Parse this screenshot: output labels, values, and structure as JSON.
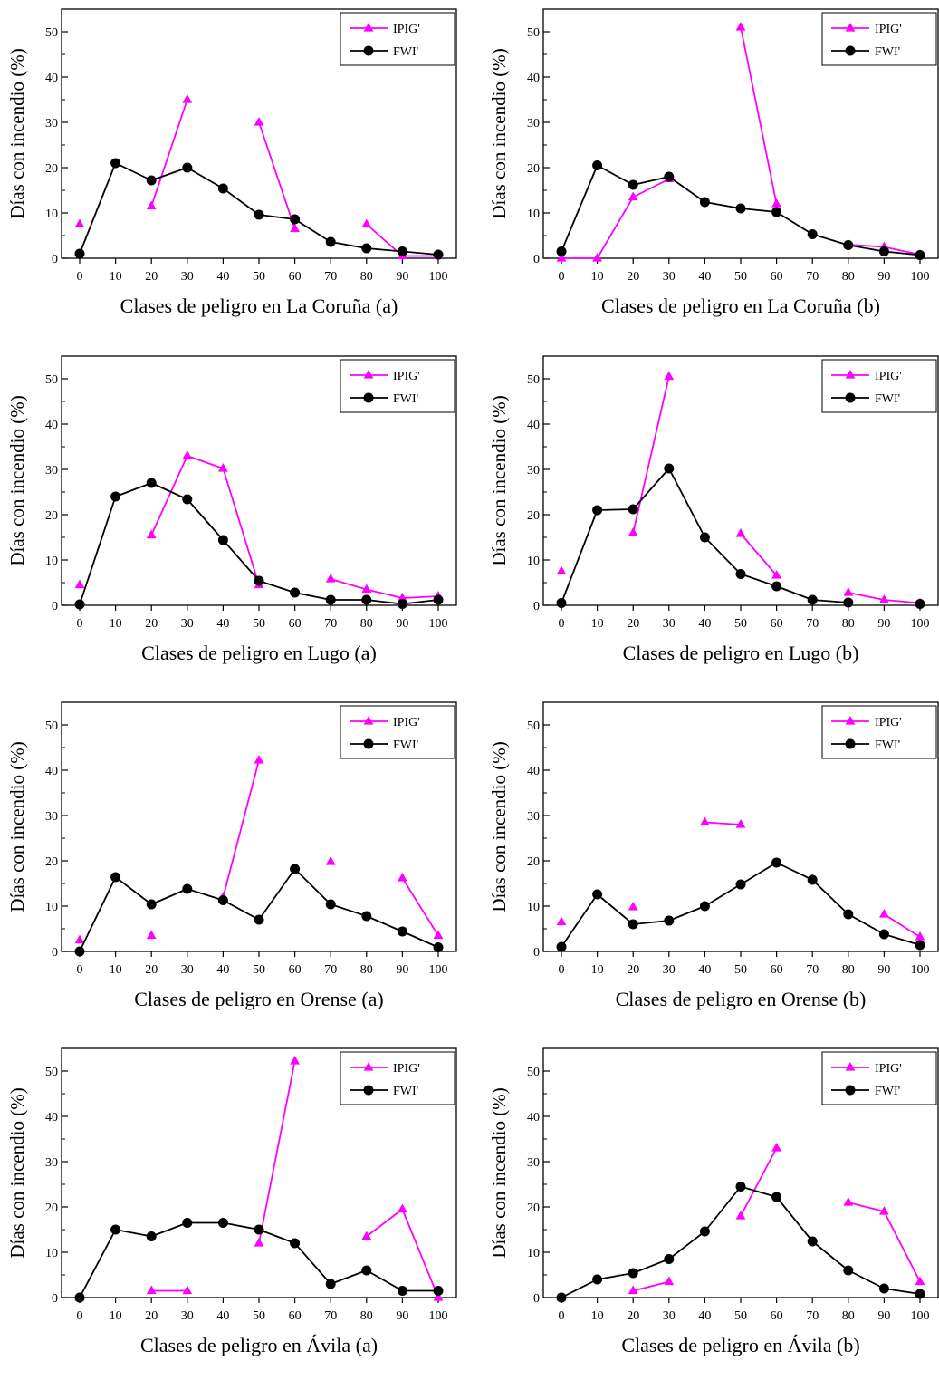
{
  "figure": {
    "colors": {
      "IPIG'": "#ff00ff",
      "FWI'": "#000000"
    },
    "markers": {
      "IPIG'": "triangle",
      "FWI'": "circle"
    }
  },
  "chart_data": [
    {
      "type": "line",
      "title": "",
      "xlabel": "Clases de peligro en La Coruña (a)",
      "ylabel": "Días con incendio (%)",
      "x": [
        0,
        10,
        20,
        30,
        40,
        50,
        60,
        70,
        80,
        90,
        100
      ],
      "xlim": [
        0,
        100
      ],
      "ylim": [
        0,
        55
      ],
      "yticks": [
        0,
        10,
        20,
        30,
        40,
        50
      ],
      "grid": false,
      "legend": "top-right",
      "series": [
        {
          "name": "IPIG'",
          "values": [
            7.5,
            null,
            11.5,
            35,
            null,
            30,
            6.5,
            null,
            7.5,
            0.5,
            0.5
          ]
        },
        {
          "name": "FWI'",
          "values": [
            1,
            21,
            17.2,
            20,
            15.4,
            9.6,
            8.6,
            3.6,
            2.2,
            1.5,
            0.8
          ]
        }
      ]
    },
    {
      "type": "line",
      "title": "",
      "xlabel": "Clases de peligro en  La Coruña (b)",
      "ylabel": "Días con incendio (%)",
      "x": [
        0,
        10,
        20,
        30,
        40,
        50,
        60,
        70,
        80,
        90,
        100
      ],
      "xlim": [
        0,
        100
      ],
      "ylim": [
        0,
        55
      ],
      "yticks": [
        0,
        10,
        20,
        30,
        40,
        50
      ],
      "grid": false,
      "legend": "top-right",
      "series": [
        {
          "name": "IPIG'",
          "values": [
            0,
            0,
            13.5,
            17.5,
            null,
            51,
            12,
            null,
            3,
            2.5,
            0.8
          ]
        },
        {
          "name": "FWI'",
          "values": [
            1.5,
            20.5,
            16.2,
            18,
            12.4,
            11,
            10.2,
            5.3,
            2.9,
            1.5,
            0.7
          ]
        }
      ]
    },
    {
      "type": "line",
      "title": "",
      "xlabel": "Clases de peligro en Lugo (a)",
      "ylabel": "Días con incendio (%)",
      "x": [
        0,
        10,
        20,
        30,
        40,
        50,
        60,
        70,
        80,
        90,
        100
      ],
      "xlim": [
        0,
        100
      ],
      "ylim": [
        0,
        55
      ],
      "yticks": [
        0,
        10,
        20,
        30,
        40,
        50
      ],
      "grid": false,
      "legend": "top-right",
      "series": [
        {
          "name": "IPIG'",
          "values": [
            4.5,
            null,
            15.5,
            33,
            30.2,
            4.5,
            null,
            5.8,
            3.5,
            1.6,
            2
          ]
        },
        {
          "name": "FWI'",
          "values": [
            0.2,
            24,
            27,
            23.4,
            14.4,
            5.4,
            2.8,
            1.2,
            1.2,
            0.3,
            1.2
          ]
        }
      ]
    },
    {
      "type": "line",
      "title": "",
      "xlabel": "Clases de peligro en Lugo (b)",
      "ylabel": "Días con incendio (%)",
      "x": [
        0,
        10,
        20,
        30,
        40,
        50,
        60,
        70,
        80,
        90,
        100
      ],
      "xlim": [
        0,
        100
      ],
      "ylim": [
        0,
        55
      ],
      "yticks": [
        0,
        10,
        20,
        30,
        40,
        50
      ],
      "grid": false,
      "legend": "top-right",
      "series": [
        {
          "name": "IPIG'",
          "values": [
            7.5,
            null,
            16,
            50.5,
            null,
            15.8,
            6.6,
            null,
            2.8,
            1.2,
            0.5
          ]
        },
        {
          "name": "FWI'",
          "values": [
            0.5,
            21,
            21.2,
            30.2,
            15,
            6.9,
            4.2,
            1.2,
            0.6,
            null,
            0.3
          ]
        }
      ]
    },
    {
      "type": "line",
      "title": "",
      "xlabel": "Clases de peligro en Orense (a)",
      "ylabel": "Días con incendio (%)",
      "x": [
        0,
        10,
        20,
        30,
        40,
        50,
        60,
        70,
        80,
        90,
        100
      ],
      "xlim": [
        0,
        100
      ],
      "ylim": [
        0,
        55
      ],
      "yticks": [
        0,
        10,
        20,
        30,
        40,
        50
      ],
      "grid": false,
      "legend": "top-right",
      "series": [
        {
          "name": "IPIG'",
          "values": [
            2.5,
            null,
            3.5,
            null,
            12,
            42.2,
            null,
            19.8,
            null,
            16.2,
            3.5
          ]
        },
        {
          "name": "FWI'",
          "values": [
            0,
            16.4,
            10.4,
            13.8,
            11.3,
            7,
            18.2,
            10.4,
            7.8,
            4.4,
            0.9
          ]
        }
      ]
    },
    {
      "type": "line",
      "title": "",
      "xlabel": "Clases de peligro en Orense (b)",
      "ylabel": "Días con incendio (%)",
      "x": [
        0,
        10,
        20,
        30,
        40,
        50,
        60,
        70,
        80,
        90,
        100
      ],
      "xlim": [
        0,
        100
      ],
      "ylim": [
        0,
        55
      ],
      "yticks": [
        0,
        10,
        20,
        30,
        40,
        50
      ],
      "grid": false,
      "legend": "top-right",
      "series": [
        {
          "name": "IPIG'",
          "values": [
            6.5,
            null,
            9.8,
            null,
            28.5,
            28,
            null,
            16,
            null,
            8.2,
            3.2
          ]
        },
        {
          "name": "FWI'",
          "values": [
            1,
            12.6,
            6,
            6.8,
            10,
            14.8,
            19.6,
            15.8,
            8.2,
            3.8,
            1.4
          ]
        }
      ]
    },
    {
      "type": "line",
      "title": "",
      "xlabel": "Clases de peligro en Ávila (a)",
      "ylabel": "Días con incendio (%)",
      "x": [
        0,
        10,
        20,
        30,
        40,
        50,
        60,
        70,
        80,
        90,
        100
      ],
      "xlim": [
        0,
        100
      ],
      "ylim": [
        0,
        55
      ],
      "yticks": [
        0,
        10,
        20,
        30,
        40,
        50
      ],
      "grid": false,
      "legend": "top-right",
      "series": [
        {
          "name": "IPIG'",
          "values": [
            0,
            null,
            1.5,
            1.5,
            null,
            12,
            52.2,
            null,
            13.5,
            19.5,
            0
          ]
        },
        {
          "name": "FWI'",
          "values": [
            0,
            15,
            13.5,
            16.5,
            16.5,
            15,
            12,
            3,
            6,
            1.5,
            1.5
          ]
        }
      ]
    },
    {
      "type": "line",
      "title": "",
      "xlabel": "Clases de peligro en Ávila (b)",
      "ylabel": "Días con incendio (%)",
      "x": [
        0,
        10,
        20,
        30,
        40,
        50,
        60,
        70,
        80,
        90,
        100
      ],
      "xlim": [
        0,
        100
      ],
      "ylim": [
        0,
        55
      ],
      "yticks": [
        0,
        10,
        20,
        30,
        40,
        50
      ],
      "grid": false,
      "legend": "top-right",
      "series": [
        {
          "name": "IPIG'",
          "values": [
            0,
            null,
            1.5,
            3.5,
            null,
            18,
            33,
            null,
            21,
            19,
            3.5
          ]
        },
        {
          "name": "FWI'",
          "values": [
            0,
            4,
            5.4,
            8.5,
            14.6,
            24.5,
            22.2,
            12.4,
            6,
            2,
            0.8
          ]
        }
      ]
    }
  ]
}
